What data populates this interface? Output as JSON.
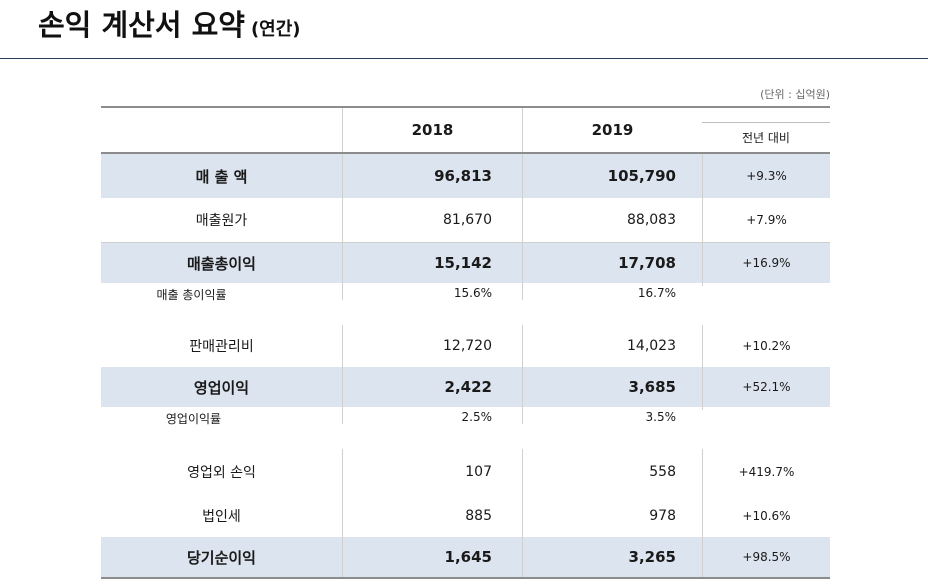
{
  "page": {
    "title": "손익 계산서 요약",
    "title_suffix": "(연간)",
    "unit": "(단위 : 십억원)"
  },
  "table": {
    "headers": {
      "label": "",
      "y2018": "2018",
      "y2019": "2019",
      "yoy": "전년 대비"
    },
    "rows": [
      {
        "label": "매 출 액",
        "y2018": "96,813",
        "y2019": "105,790",
        "yoy": "+9.3%"
      },
      {
        "label": "매출원가",
        "y2018": "81,670",
        "y2019": "88,083",
        "yoy": "+7.9%"
      },
      {
        "label": "매출총이익",
        "y2018": "15,142",
        "y2019": "17,708",
        "yoy": "+16.9%"
      },
      {
        "label": "매출 총이익률",
        "y2018": "15.6%",
        "y2019": "16.7%",
        "yoy": ""
      },
      {
        "label": "판매관리비",
        "y2018": "12,720",
        "y2019": "14,023",
        "yoy": "+10.2%"
      },
      {
        "label": "영업이익",
        "y2018": "2,422",
        "y2019": "3,685",
        "yoy": "+52.1%"
      },
      {
        "label": "영업이익률",
        "y2018": "2.5%",
        "y2019": "3.5%",
        "yoy": ""
      },
      {
        "label": "영업외 손익",
        "y2018": "107",
        "y2019": "558",
        "yoy": "+419.7%"
      },
      {
        "label": "법인세",
        "y2018": "885",
        "y2019": "978",
        "yoy": "+10.6%"
      },
      {
        "label": "당기순이익",
        "y2018": "1,645",
        "y2019": "3,265",
        "yoy": "+98.5%"
      }
    ]
  },
  "colors": {
    "highlight_row": "#dce4ef",
    "title_rule": "#2e3f5c"
  }
}
